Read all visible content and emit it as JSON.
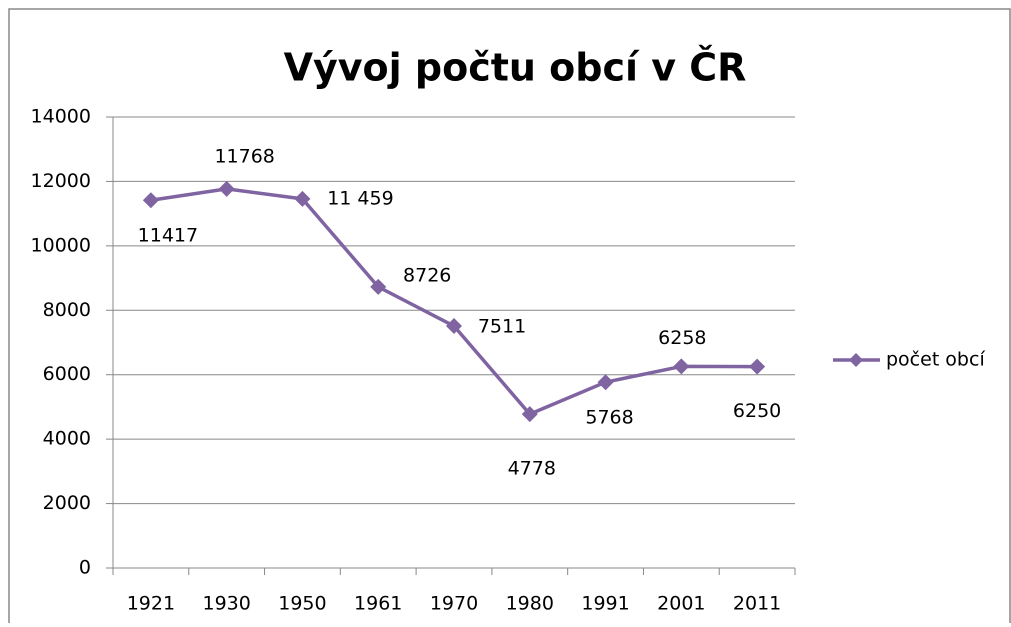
{
  "chart_data": {
    "type": "line",
    "title": "Vývoj počtu obcí v ČR",
    "categories": [
      "1921",
      "1930",
      "1950",
      "1961",
      "1970",
      "1980",
      "1991",
      "2001",
      "2011"
    ],
    "series": [
      {
        "name": "počet obcí",
        "color": "#8064a2",
        "values": [
          11417,
          11768,
          11459,
          8726,
          7511,
          4778,
          5768,
          6258,
          6250
        ],
        "value_labels": [
          "11417",
          "11768",
          "11 459",
          "8726",
          "7511",
          "4778",
          "5768",
          "6258",
          "6250"
        ]
      }
    ],
    "ylim": [
      0,
      14000
    ],
    "yticks": [
      0,
      2000,
      4000,
      6000,
      8000,
      10000,
      12000,
      14000
    ],
    "grid": true,
    "legend": "right"
  }
}
